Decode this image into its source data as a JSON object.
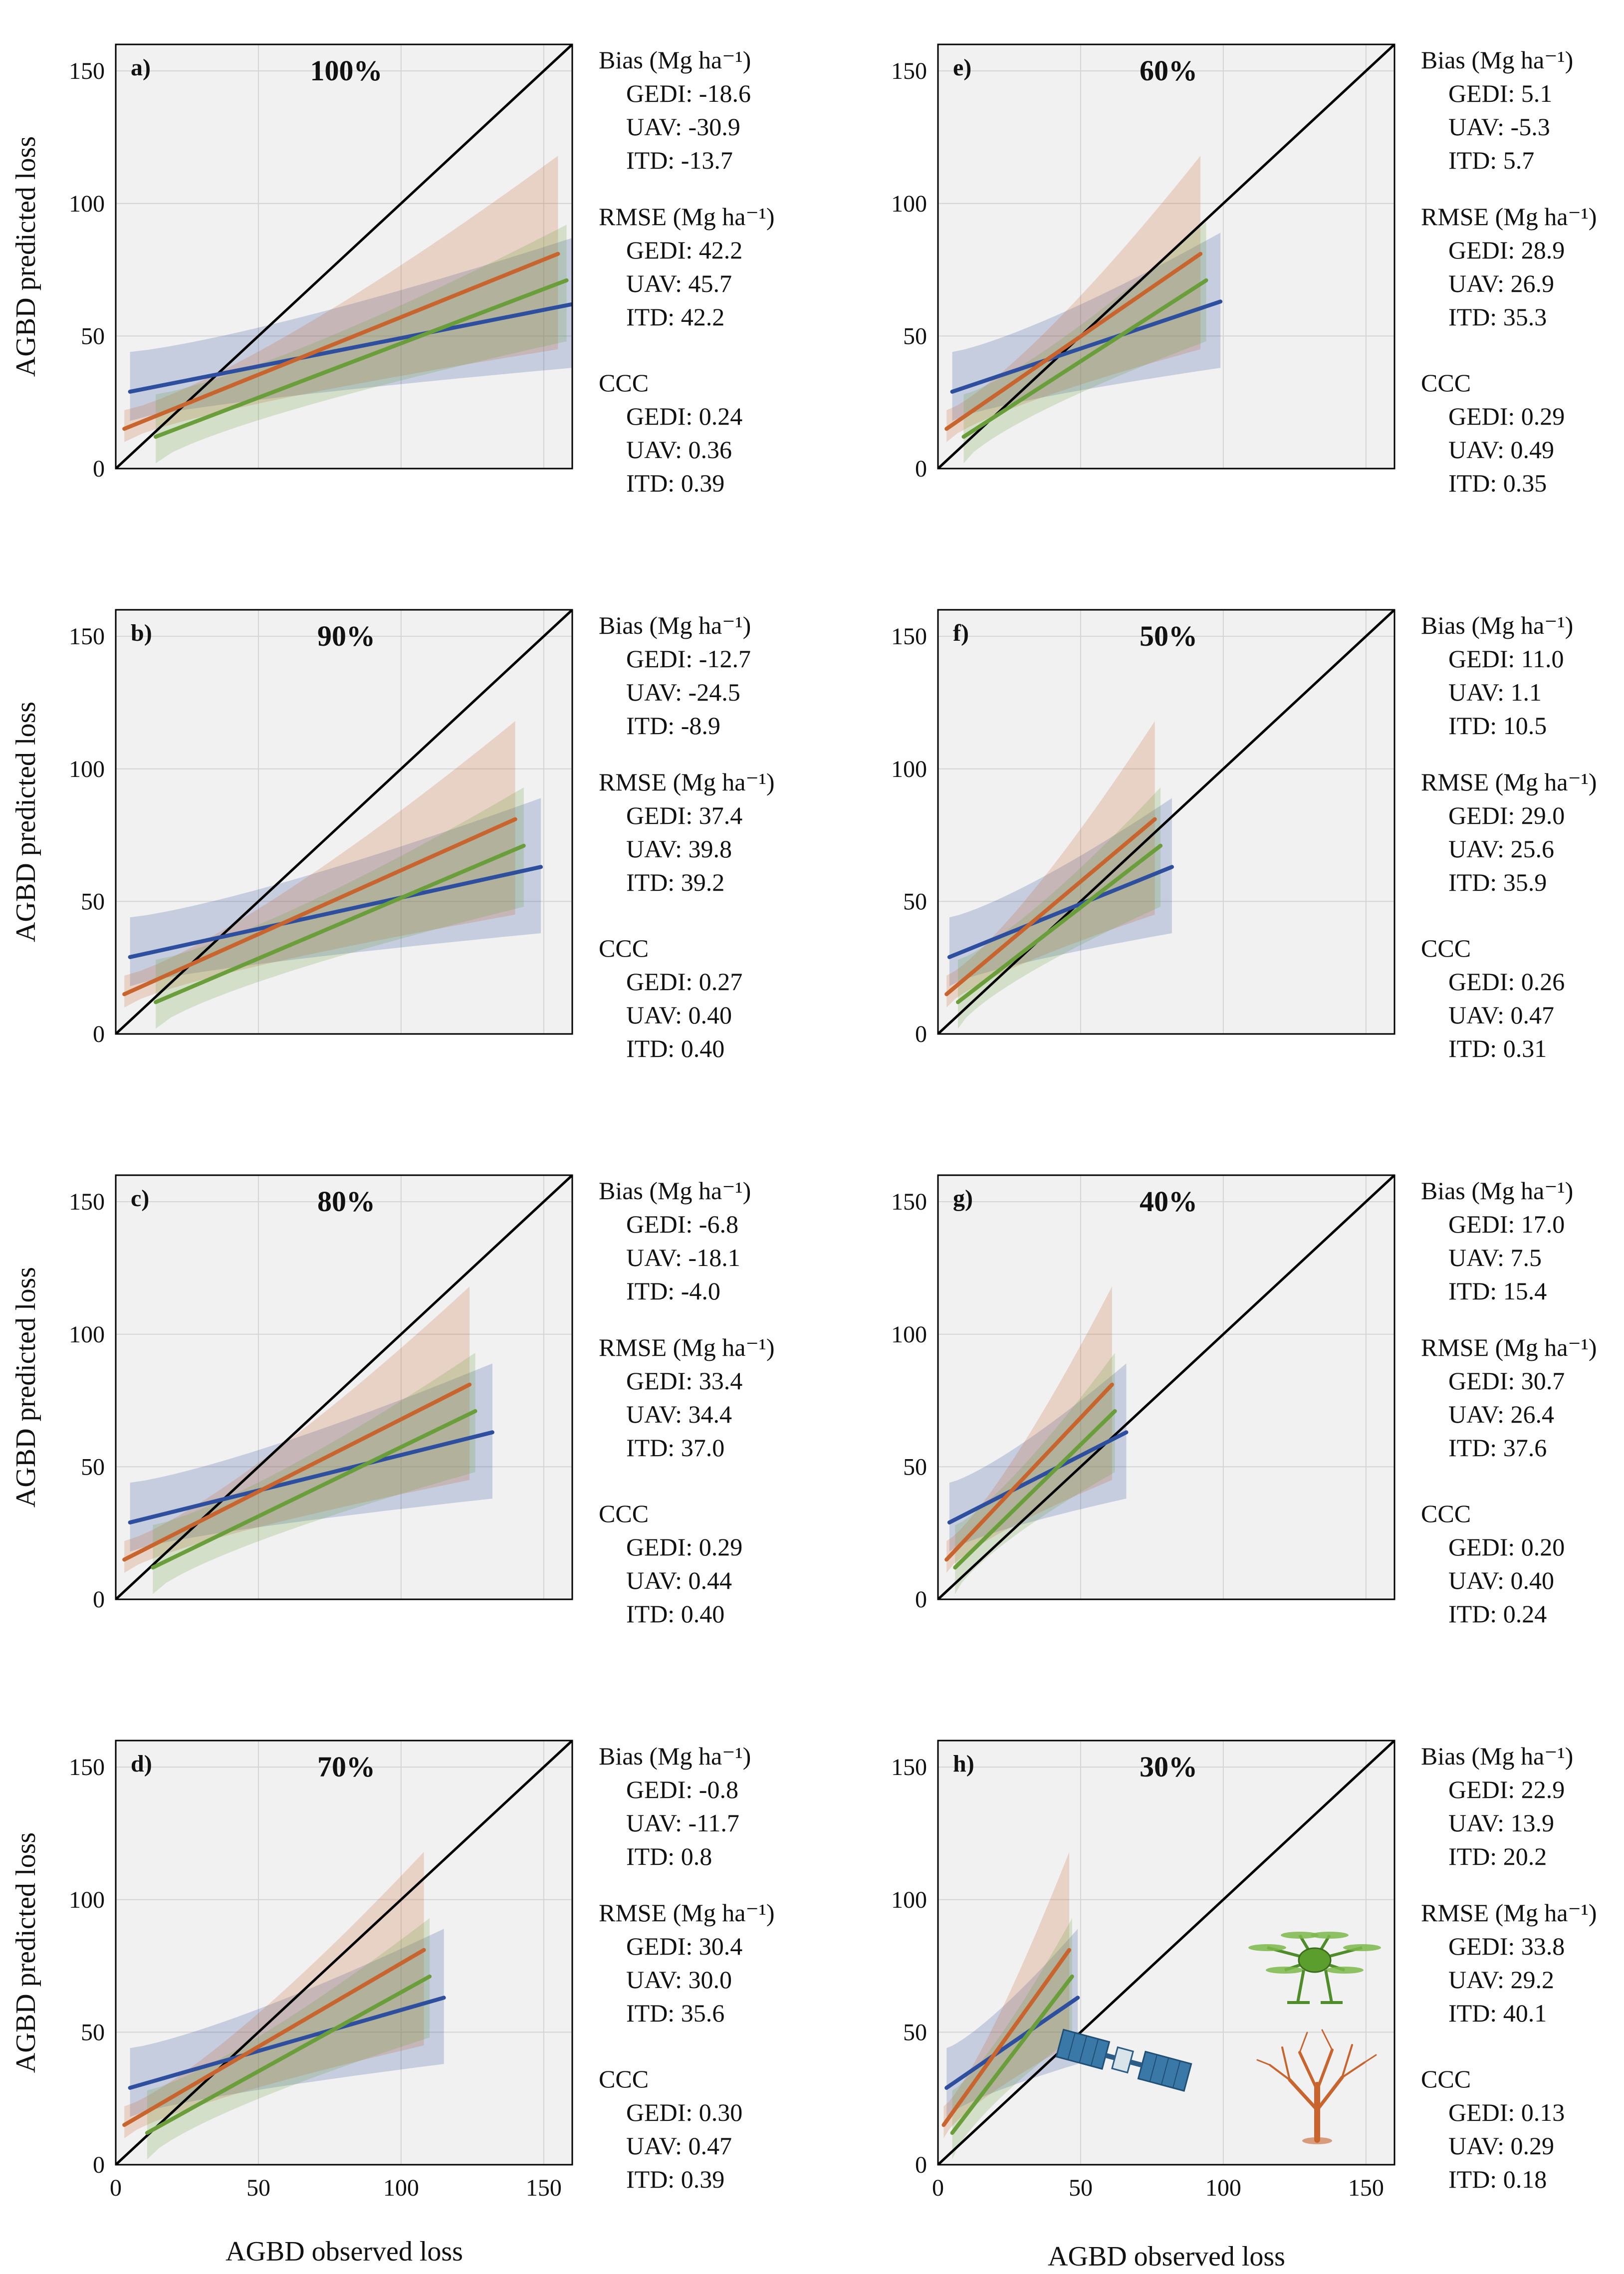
{
  "figure": {
    "xlabel": "AGBD observed loss",
    "ylabel": "AGBD predicted loss",
    "headers": {
      "bias": "Bias (Mg ha⁻¹)",
      "rmse": "RMSE (Mg ha⁻¹)",
      "ccc": "CCC"
    },
    "colors": {
      "gedi": "#2d4f9e",
      "uav": "#6a9e3a",
      "itd": "#c8642e",
      "one_to_one": "#000000",
      "panel_bg": "#f1f1f1",
      "grid": "#d4d4d4"
    },
    "icons": [
      "satellite-icon",
      "drone-icon",
      "tree-icon"
    ]
  },
  "chart_data": [
    {
      "type": "line",
      "letter": "a)",
      "pct": "100%",
      "xlim": [
        0,
        160
      ],
      "ylim": [
        0,
        160
      ],
      "xticks": [
        0,
        50,
        100,
        150
      ],
      "yticks": [
        0,
        50,
        100,
        150
      ],
      "grid": true,
      "reference": "1:1 line",
      "series": [
        {
          "name": "GEDI",
          "x": [
            5,
            160
          ],
          "y": [
            29,
            62
          ],
          "band_lower": [
            18,
            38
          ],
          "band_upper": [
            44,
            87
          ]
        },
        {
          "name": "ITD",
          "x": [
            3,
            155
          ],
          "y": [
            15,
            81
          ],
          "band_lower": [
            10,
            45
          ],
          "band_upper": [
            22,
            118
          ]
        },
        {
          "name": "UAV",
          "x": [
            14,
            158
          ],
          "y": [
            12,
            71
          ],
          "band_lower": [
            2,
            48
          ],
          "band_upper": [
            28,
            92
          ]
        }
      ],
      "stats": {
        "bias": {
          "GEDI": "-18.6",
          "UAV": "-30.9",
          "ITD": "-13.7"
        },
        "rmse": {
          "GEDI": "42.2",
          "UAV": "45.7",
          "ITD": "42.2"
        },
        "ccc": {
          "GEDI": "0.24",
          "UAV": "0.36",
          "ITD": "0.39"
        }
      }
    },
    {
      "type": "line",
      "letter": "b)",
      "pct": "90%",
      "xlim": [
        0,
        160
      ],
      "ylim": [
        0,
        160
      ],
      "xticks": [
        0,
        50,
        100,
        150
      ],
      "yticks": [
        0,
        50,
        100,
        150
      ],
      "grid": true,
      "reference": "1:1 line",
      "series": [
        {
          "name": "GEDI",
          "x": [
            5,
            149
          ],
          "y": [
            29,
            63
          ],
          "band_lower": [
            18,
            38
          ],
          "band_upper": [
            44,
            89
          ]
        },
        {
          "name": "ITD",
          "x": [
            3,
            140
          ],
          "y": [
            15,
            81
          ],
          "band_lower": [
            10,
            45
          ],
          "band_upper": [
            22,
            118
          ]
        },
        {
          "name": "UAV",
          "x": [
            14,
            143
          ],
          "y": [
            12,
            71
          ],
          "band_lower": [
            2,
            48
          ],
          "band_upper": [
            28,
            93
          ]
        }
      ],
      "stats": {
        "bias": {
          "GEDI": "-12.7",
          "UAV": "-24.5",
          "ITD": "-8.9"
        },
        "rmse": {
          "GEDI": "37.4",
          "UAV": "39.8",
          "ITD": "39.2"
        },
        "ccc": {
          "GEDI": "0.27",
          "UAV": "0.40",
          "ITD": "0.40"
        }
      }
    },
    {
      "type": "line",
      "letter": "c)",
      "pct": "80%",
      "xlim": [
        0,
        160
      ],
      "ylim": [
        0,
        160
      ],
      "xticks": [
        0,
        50,
        100,
        150
      ],
      "yticks": [
        0,
        50,
        100,
        150
      ],
      "grid": true,
      "reference": "1:1 line",
      "series": [
        {
          "name": "GEDI",
          "x": [
            5,
            132
          ],
          "y": [
            29,
            63
          ],
          "band_lower": [
            18,
            38
          ],
          "band_upper": [
            44,
            89
          ]
        },
        {
          "name": "ITD",
          "x": [
            3,
            124
          ],
          "y": [
            15,
            81
          ],
          "band_lower": [
            10,
            45
          ],
          "band_upper": [
            22,
            118
          ]
        },
        {
          "name": "UAV",
          "x": [
            13,
            126
          ],
          "y": [
            12,
            71
          ],
          "band_lower": [
            2,
            48
          ],
          "band_upper": [
            28,
            93
          ]
        }
      ],
      "stats": {
        "bias": {
          "GEDI": "-6.8",
          "UAV": "-18.1",
          "ITD": "-4.0"
        },
        "rmse": {
          "GEDI": "33.4",
          "UAV": "34.4",
          "ITD": "37.0"
        },
        "ccc": {
          "GEDI": "0.29",
          "UAV": "0.44",
          "ITD": "0.40"
        }
      }
    },
    {
      "type": "line",
      "letter": "d)",
      "pct": "70%",
      "xlim": [
        0,
        160
      ],
      "ylim": [
        0,
        160
      ],
      "xticks": [
        0,
        50,
        100,
        150
      ],
      "yticks": [
        0,
        50,
        100,
        150
      ],
      "grid": true,
      "reference": "1:1 line",
      "series": [
        {
          "name": "GEDI",
          "x": [
            5,
            115
          ],
          "y": [
            29,
            63
          ],
          "band_lower": [
            18,
            38
          ],
          "band_upper": [
            44,
            89
          ]
        },
        {
          "name": "ITD",
          "x": [
            3,
            108
          ],
          "y": [
            15,
            81
          ],
          "band_lower": [
            10,
            45
          ],
          "band_upper": [
            22,
            118
          ]
        },
        {
          "name": "UAV",
          "x": [
            11,
            110
          ],
          "y": [
            12,
            71
          ],
          "band_lower": [
            2,
            48
          ],
          "band_upper": [
            28,
            93
          ]
        }
      ],
      "stats": {
        "bias": {
          "GEDI": "-0.8",
          "UAV": "-11.7",
          "ITD": "0.8"
        },
        "rmse": {
          "GEDI": "30.4",
          "UAV": "30.0",
          "ITD": "35.6"
        },
        "ccc": {
          "GEDI": "0.30",
          "UAV": "0.47",
          "ITD": "0.39"
        }
      }
    },
    {
      "type": "line",
      "letter": "e)",
      "pct": "60%",
      "xlim": [
        0,
        160
      ],
      "ylim": [
        0,
        160
      ],
      "xticks": [
        0,
        50,
        100,
        150
      ],
      "yticks": [
        0,
        50,
        100,
        150
      ],
      "grid": true,
      "reference": "1:1 line",
      "series": [
        {
          "name": "GEDI",
          "x": [
            5,
            99
          ],
          "y": [
            29,
            63
          ],
          "band_lower": [
            18,
            38
          ],
          "band_upper": [
            44,
            89
          ]
        },
        {
          "name": "ITD",
          "x": [
            3,
            92
          ],
          "y": [
            15,
            81
          ],
          "band_lower": [
            10,
            45
          ],
          "band_upper": [
            22,
            118
          ]
        },
        {
          "name": "UAV",
          "x": [
            9,
            94
          ],
          "y": [
            12,
            71
          ],
          "band_lower": [
            2,
            48
          ],
          "band_upper": [
            28,
            93
          ]
        }
      ],
      "stats": {
        "bias": {
          "GEDI": "5.1",
          "UAV": "-5.3",
          "ITD": "5.7"
        },
        "rmse": {
          "GEDI": "28.9",
          "UAV": "26.9",
          "ITD": "35.3"
        },
        "ccc": {
          "GEDI": "0.29",
          "UAV": "0.49",
          "ITD": "0.35"
        }
      }
    },
    {
      "type": "line",
      "letter": "f)",
      "pct": "50%",
      "xlim": [
        0,
        160
      ],
      "ylim": [
        0,
        160
      ],
      "xticks": [
        0,
        50,
        100,
        150
      ],
      "yticks": [
        0,
        50,
        100,
        150
      ],
      "grid": true,
      "reference": "1:1 line",
      "series": [
        {
          "name": "GEDI",
          "x": [
            4,
            82
          ],
          "y": [
            29,
            63
          ],
          "band_lower": [
            18,
            38
          ],
          "band_upper": [
            44,
            89
          ]
        },
        {
          "name": "ITD",
          "x": [
            3,
            76
          ],
          "y": [
            15,
            81
          ],
          "band_lower": [
            10,
            45
          ],
          "band_upper": [
            22,
            118
          ]
        },
        {
          "name": "UAV",
          "x": [
            7,
            78
          ],
          "y": [
            12,
            71
          ],
          "band_lower": [
            2,
            48
          ],
          "band_upper": [
            28,
            93
          ]
        }
      ],
      "stats": {
        "bias": {
          "GEDI": "11.0",
          "UAV": "1.1",
          "ITD": "10.5"
        },
        "rmse": {
          "GEDI": "29.0",
          "UAV": "25.6",
          "ITD": "35.9"
        },
        "ccc": {
          "GEDI": "0.26",
          "UAV": "0.47",
          "ITD": "0.31"
        }
      }
    },
    {
      "type": "line",
      "letter": "g)",
      "pct": "40%",
      "xlim": [
        0,
        160
      ],
      "ylim": [
        0,
        160
      ],
      "xticks": [
        0,
        50,
        100,
        150
      ],
      "yticks": [
        0,
        50,
        100,
        150
      ],
      "grid": true,
      "reference": "1:1 line",
      "series": [
        {
          "name": "GEDI",
          "x": [
            4,
            66
          ],
          "y": [
            29,
            63
          ],
          "band_lower": [
            18,
            38
          ],
          "band_upper": [
            44,
            89
          ]
        },
        {
          "name": "ITD",
          "x": [
            3,
            61
          ],
          "y": [
            15,
            81
          ],
          "band_lower": [
            10,
            45
          ],
          "band_upper": [
            22,
            118
          ]
        },
        {
          "name": "UAV",
          "x": [
            6,
            62
          ],
          "y": [
            12,
            71
          ],
          "band_lower": [
            2,
            48
          ],
          "band_upper": [
            28,
            93
          ]
        }
      ],
      "stats": {
        "bias": {
          "GEDI": "17.0",
          "UAV": "7.5",
          "ITD": "15.4"
        },
        "rmse": {
          "GEDI": "30.7",
          "UAV": "26.4",
          "ITD": "37.6"
        },
        "ccc": {
          "GEDI": "0.20",
          "UAV": "0.40",
          "ITD": "0.24"
        }
      }
    },
    {
      "type": "line",
      "letter": "h)",
      "pct": "30%",
      "xlim": [
        0,
        160
      ],
      "ylim": [
        0,
        160
      ],
      "xticks": [
        0,
        50,
        100,
        150
      ],
      "yticks": [
        0,
        50,
        100,
        150
      ],
      "grid": true,
      "reference": "1:1 line",
      "series": [
        {
          "name": "GEDI",
          "x": [
            3,
            49
          ],
          "y": [
            29,
            63
          ],
          "band_lower": [
            18,
            38
          ],
          "band_upper": [
            44,
            89
          ]
        },
        {
          "name": "ITD",
          "x": [
            2,
            46
          ],
          "y": [
            15,
            81
          ],
          "band_lower": [
            10,
            45
          ],
          "band_upper": [
            22,
            118
          ]
        },
        {
          "name": "UAV",
          "x": [
            5,
            47
          ],
          "y": [
            12,
            71
          ],
          "band_lower": [
            2,
            48
          ],
          "band_upper": [
            28,
            93
          ]
        }
      ],
      "stats": {
        "bias": {
          "GEDI": "22.9",
          "UAV": "13.9",
          "ITD": "20.2"
        },
        "rmse": {
          "GEDI": "33.8",
          "UAV": "29.2",
          "ITD": "40.1"
        },
        "ccc": {
          "GEDI": "0.13",
          "UAV": "0.29",
          "ITD": "0.18"
        }
      }
    }
  ]
}
